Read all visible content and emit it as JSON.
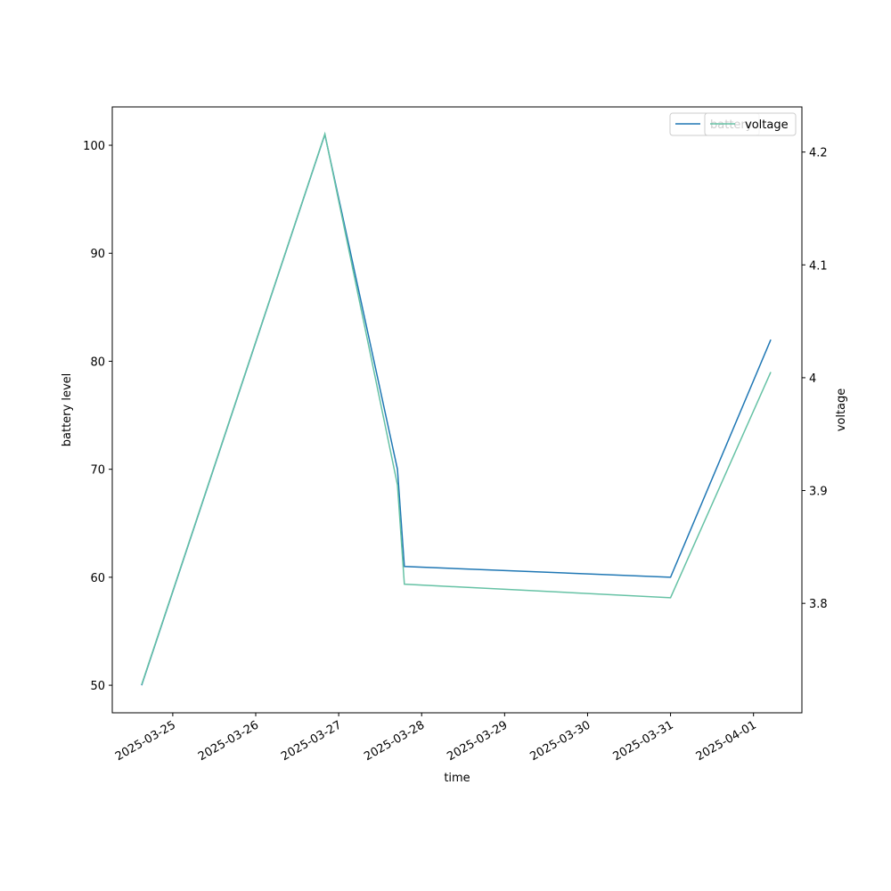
{
  "chart_data": {
    "type": "line",
    "x_label": "time",
    "y_label": "battery level",
    "y2_label": "voltage",
    "x": [
      "2025-03-24T15:00",
      "2025-03-26T20:00",
      "2025-03-27T17:00",
      "2025-03-27T19:00",
      "2025-03-31T00:00",
      "2025-04-01T05:00"
    ],
    "series": [
      {
        "name": "battery",
        "color": "#1f77b4",
        "values": [
          50,
          101,
          70,
          61,
          60,
          82
        ]
      },
      {
        "name": "voltage",
        "color": "#66c2a5",
        "axis": "y2",
        "values": [
          3.728,
          4.216,
          3.905,
          3.817,
          3.805,
          4.005
        ]
      }
    ],
    "xlim": [
      "2025-03-24T06:30",
      "2025-04-01T14:00"
    ],
    "xticks": [
      "2025-03-25",
      "2025-03-26",
      "2025-03-27",
      "2025-03-28",
      "2025-03-29",
      "2025-03-30",
      "2025-03-31",
      "2025-04-01"
    ],
    "ylim": [
      47.45,
      103.55
    ],
    "yticks": [
      50,
      60,
      70,
      80,
      90,
      100
    ],
    "y2lim": [
      3.703,
      4.24
    ],
    "y2ticks": [
      3.8,
      3.9,
      4.0,
      4.1,
      4.2
    ],
    "legend": "upper right"
  }
}
